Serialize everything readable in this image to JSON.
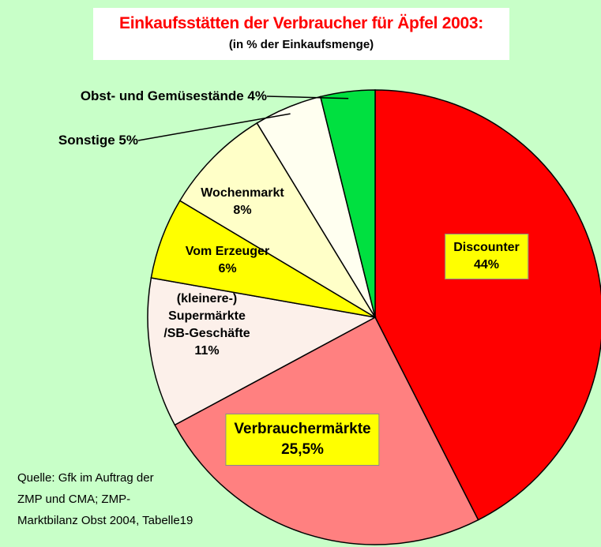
{
  "chart_data": {
    "type": "pie",
    "title": "Einkaufsstätten der Verbraucher für Äpfel 2003:",
    "subtitle": "(in % der Einkaufsmenge)",
    "categories": [
      "Discounter",
      "Verbrauchermärkte",
      "(kleinere-)\nSupermärkte\n/SB-Geschäfte",
      "Vom Erzeuger",
      "Wochenmarkt",
      "Sonstige",
      "Obst- und Gemüsestände"
    ],
    "values": [
      44,
      25.5,
      11,
      6,
      8,
      5,
      4
    ],
    "value_labels": [
      "44%",
      "25,5%",
      "11%",
      "6%",
      "8%",
      "5%",
      "4%"
    ],
    "colors": [
      "#ff0000",
      "#ff8080",
      "#fcf0ea",
      "#ffff00",
      "#ffffc8",
      "#fffff0",
      "#00e040"
    ],
    "source": "Quelle: Gfk im Auftrag der\nZMP und CMA; ZMP-\nMarktbilanz Obst 2004, Tabelle19"
  }
}
